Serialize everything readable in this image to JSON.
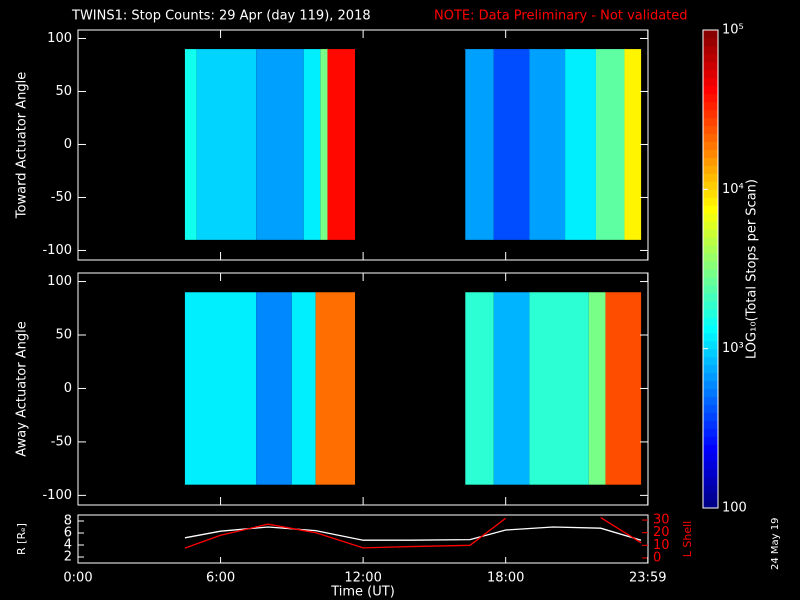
{
  "chart_data": [
    {
      "type": "heatmap",
      "title": "TWINS1: Stop Counts: 29 Apr (day 119), 2018",
      "note": "NOTE: Data Preliminary - Not validated",
      "note_color": "#ff0000",
      "ylabel": "Toward Actuator Angle",
      "xlim": [
        0,
        23.99
      ],
      "ylim": [
        -109,
        108
      ],
      "yticks": [
        100,
        50,
        0,
        -50,
        -100
      ],
      "xticks": [
        0,
        6,
        12,
        18,
        23.98
      ],
      "yrange": [
        -90,
        90
      ],
      "x_edges": [
        4.5,
        5,
        7.5,
        9.5,
        10.2,
        10.5,
        11.66,
        16.3,
        17.5,
        19,
        20.5,
        21.8,
        23,
        23.7
      ],
      "values": [
        1500,
        1000,
        700,
        1200,
        3000,
        40000,
        null,
        700,
        400,
        700,
        1200,
        2500,
        8000
      ]
    },
    {
      "type": "heatmap",
      "ylabel": "Away Actuator Angle",
      "xlim": [
        0,
        23.99
      ],
      "ylim": [
        -109,
        108
      ],
      "yticks": [
        100,
        50,
        0,
        -50,
        -100
      ],
      "xticks": [
        0,
        6,
        12,
        18,
        23.98
      ],
      "yrange": [
        -90,
        90
      ],
      "x_edges": [
        4.5,
        7.5,
        9,
        10,
        11.66,
        16.3,
        17.5,
        19,
        21.5,
        22.2,
        23.7
      ],
      "values": [
        1200,
        600,
        1200,
        20000,
        null,
        1800,
        800,
        1800,
        3000,
        25000
      ]
    },
    {
      "type": "colorbar",
      "label": "LOG₁₀(Total Stops per Scan)",
      "log": true,
      "clim": [
        100,
        100000
      ],
      "ticks": [
        {
          "value": 100000,
          "label": "10⁵"
        },
        {
          "value": 10000,
          "label": "10⁴"
        },
        {
          "value": 1000,
          "label": "10³"
        },
        100
      ]
    },
    {
      "type": "line",
      "xlabel": "Time (UT)",
      "xlim": [
        0,
        23.99
      ],
      "xticks": [
        {
          "value": 0,
          "label": "0:00"
        },
        {
          "value": 6,
          "label": "6:00"
        },
        {
          "value": 12,
          "label": "12:00"
        },
        {
          "value": 18,
          "label": "18:00"
        },
        {
          "value": 23.98,
          "label": "23:59"
        }
      ],
      "ylabel": "R [Rₑ]",
      "ylim": [
        1,
        9
      ],
      "yticks": [
        2,
        4,
        6,
        8
      ],
      "y2label": "L Shell",
      "y2lim": [
        -4,
        34
      ],
      "y2ticks": [
        0,
        10,
        20,
        30
      ],
      "y2color": "#ff0000",
      "x": [
        4.5,
        6,
        8,
        10,
        12,
        14,
        16.5,
        18,
        20,
        22,
        23.7
      ],
      "series": [
        {
          "name": "R",
          "color": "#ffffff",
          "values": [
            5.2,
            6.3,
            7,
            6.4,
            4.8,
            4.8,
            4.9,
            6.5,
            7,
            6.8,
            4.8
          ]
        },
        {
          "name": "L Shell",
          "color": "#ff0000",
          "axis": "y2",
          "values": [
            7.8,
            18,
            26.7,
            20,
            8,
            9,
            10,
            31.4,
            null,
            32,
            12
          ]
        }
      ]
    },
    {
      "type": "text",
      "stamp": "24 May 19"
    }
  ]
}
